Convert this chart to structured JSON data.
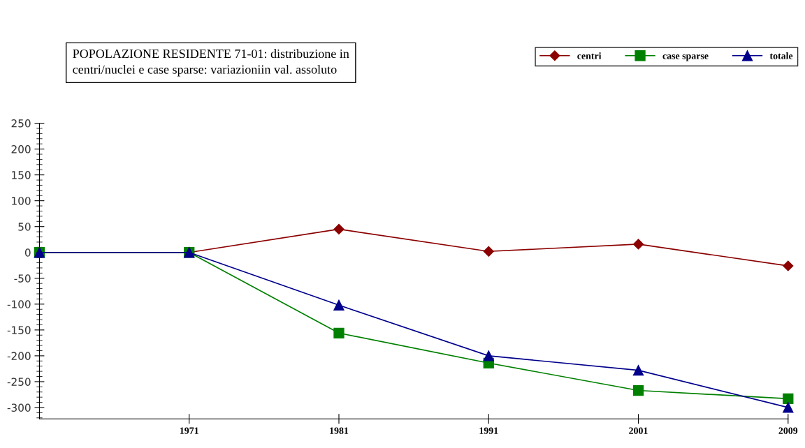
{
  "chart_data": {
    "type": "line",
    "title": "POPOLAZIONE RESIDENTE 71-01: distribuzione in\ncentri/nuclei e case sparse: variaziοniin val. assoluto",
    "categories": [
      null,
      "1971",
      "1981",
      "1991",
      "2001",
      "2009"
    ],
    "ylim": [
      -322,
      250
    ],
    "yticks": [
      -300,
      -250,
      -200,
      -150,
      -100,
      -50,
      0,
      50,
      100,
      150,
      200,
      250
    ],
    "series": [
      {
        "name": "centri",
        "color": "#8b0000",
        "marker": "diamond",
        "values": [
          0,
          0,
          45,
          2,
          16,
          -26
        ]
      },
      {
        "name": "case sparse",
        "color": "#008000",
        "marker": "square",
        "values": [
          0,
          0,
          -156,
          -214,
          -267,
          -283
        ]
      },
      {
        "name": "totale",
        "color": "#00008b",
        "marker": "triangle",
        "values": [
          0,
          0,
          -102,
          -200,
          -228,
          -300
        ]
      }
    ],
    "legend": "top right",
    "grid": false,
    "line_style": "solid"
  }
}
